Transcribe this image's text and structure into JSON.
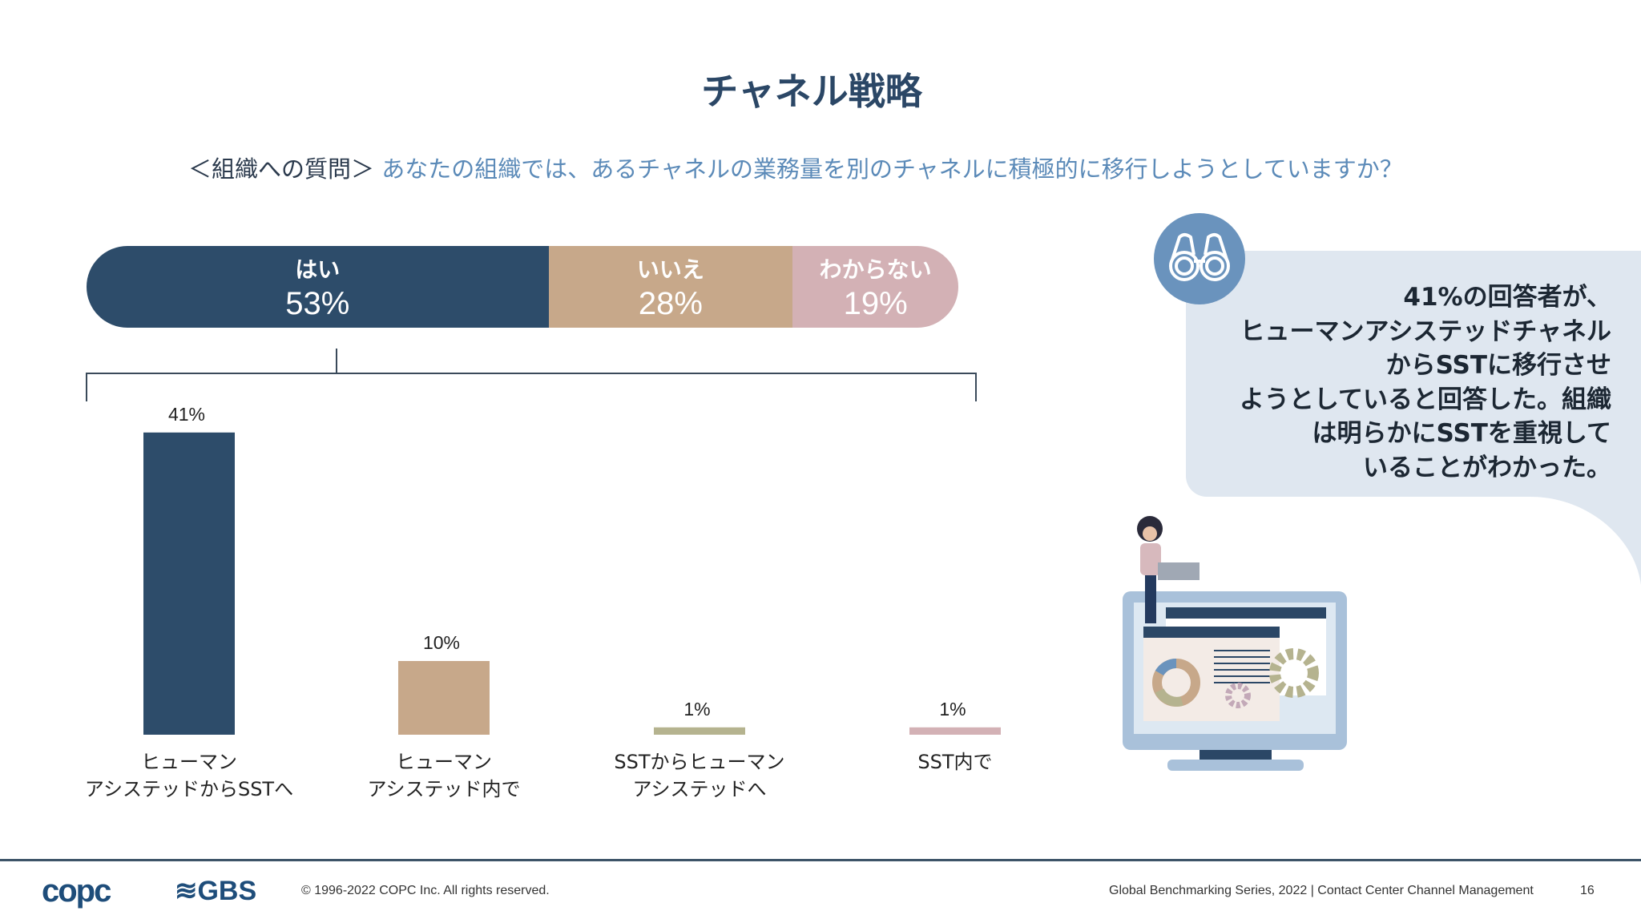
{
  "title": "チャネル戦略",
  "question": {
    "prefix": "＜組織への質問＞",
    "text": "あなたの組織では、あるチャネルの業務量を別のチャネルに積極的に移行しようとしていますか？"
  },
  "chart_data": [
    {
      "type": "bar",
      "orientation": "horizontal-stacked",
      "categories": [
        "はい",
        "いいえ",
        "わからない"
      ],
      "values": [
        53,
        28,
        19
      ],
      "value_labels": [
        "53%",
        "28%",
        "19%"
      ],
      "colors": [
        "#2d4c6a",
        "#c7a88a",
        "#d3b1b5"
      ]
    },
    {
      "type": "bar",
      "categories": [
        "ヒューマン\nアシステッドからSSTへ",
        "ヒューマン\nアシステッド内で",
        "SSTからヒューマン\nアシステッドへ",
        "SST内で"
      ],
      "category_lines": [
        [
          "ヒューマン",
          "アシステッドからSSTへ"
        ],
        [
          "ヒューマン",
          "アシステッド内で"
        ],
        [
          "SSTからヒューマン",
          "アシステッドへ"
        ],
        [
          "SST内で"
        ]
      ],
      "values": [
        41,
        10,
        1,
        1
      ],
      "value_labels": [
        "41%",
        "10%",
        "1%",
        "1%"
      ],
      "colors": [
        "#2d4c6a",
        "#c7a88a",
        "#b5b38f",
        "#d3b1b5"
      ],
      "breakdown_of": "はい"
    }
  ],
  "callout": {
    "icon": "binoculars-icon",
    "lines": [
      "41%の回答者が、",
      "ヒューマンアシステッドチャネル",
      "からSSTに移行させ",
      "ようとしていると回答した。組織",
      "は明らかにSSTを重視して",
      "いることがわかった。"
    ]
  },
  "footer": {
    "logo1": "copc",
    "logo2": "GBS",
    "copyright": "© 1996-2022 COPC Inc. All rights reserved.",
    "series": "Global Benchmarking Series, 2022 | Contact Center Channel Management",
    "page": "16"
  }
}
